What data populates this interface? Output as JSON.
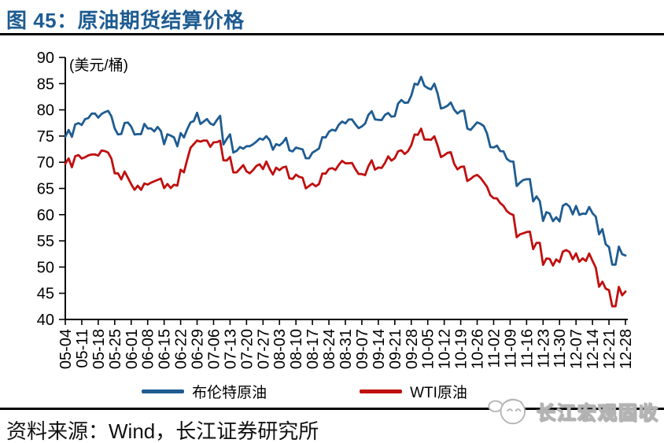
{
  "page": {
    "title": "图 45：原油期货结算价格",
    "source": "资料来源：Wind，长江证券研究所",
    "watermark": "长江宏观固收"
  },
  "colors": {
    "brand_blue": "#1E5C91",
    "line_blue": "#1E5C91",
    "line_red": "#C00F0F",
    "axis_black": "#000000"
  },
  "chart_data": {
    "type": "line",
    "title": "原油期货结算价格",
    "unit_label": "(美元/桶)",
    "xlabel": "",
    "ylabel": "美元/桶",
    "ylim": [
      40,
      90
    ],
    "yticks": [
      40,
      45,
      50,
      55,
      60,
      65,
      70,
      75,
      80,
      85,
      90
    ],
    "grid": false,
    "legend_position": "bottom",
    "x_ticks_every": 5,
    "x_tick_labels": [
      "05-04",
      "05-11",
      "05-18",
      "05-25",
      "06-01",
      "06-08",
      "06-15",
      "06-22",
      "06-29",
      "07-06",
      "07-13",
      "07-20",
      "07-27",
      "08-03",
      "08-10",
      "08-17",
      "08-24",
      "08-31",
      "09-07",
      "09-14",
      "09-21",
      "09-28",
      "10-05",
      "10-12",
      "10-19",
      "10-26",
      "11-02",
      "11-09",
      "11-16",
      "11-23",
      "11-30",
      "12-07",
      "12-14",
      "12-21",
      "12-28"
    ],
    "series": [
      {
        "name": "布伦特原油",
        "color": "#1E5C91",
        "values": [
          74.87,
          76.17,
          74.85,
          77.21,
          77.47,
          77.12,
          78.23,
          78.43,
          79.28,
          79.3,
          78.51,
          79.22,
          79.57,
          79.8,
          78.79,
          76.44,
          75.3,
          75.39,
          77.5,
          77.59,
          76.79,
          75.29,
          75.38,
          75.36,
          77.32,
          76.46,
          76.46,
          75.88,
          76.74,
          75.94,
          73.44,
          75.34,
          75.08,
          74.74,
          73.05,
          75.55,
          74.73,
          76.31,
          77.62,
          77.85,
          79.44,
          77.3,
          77.76,
          78.24,
          77.39,
          77.11,
          78.07,
          78.86,
          73.4,
          74.45,
          75.33,
          71.84,
          72.16,
          72.9,
          72.58,
          73.07,
          73.06,
          73.44,
          73.93,
          74.54,
          74.29,
          74.97,
          74.25,
          72.39,
          73.45,
          73.21,
          73.75,
          74.65,
          72.28,
          72.07,
          72.81,
          72.61,
          72.46,
          70.76,
          70.76,
          71.83,
          72.21,
          72.63,
          74.78,
          74.73,
          75.82,
          76.21,
          76.01,
          77.14,
          77.77,
          77.42,
          78.15,
          78.17,
          77.27,
          76.5,
          76.83,
          77.37,
          79.06,
          79.74,
          78.18,
          78.09,
          78.05,
          79.03,
          79.4,
          78.7,
          78.8,
          81.2,
          81.87,
          81.34,
          81.38,
          82.72,
          84.98,
          84.8,
          86.29,
          84.58,
          84.16,
          83.91,
          85.0,
          83.09,
          80.26,
          80.43,
          80.78,
          81.41,
          80.05,
          79.29,
          79.78,
          79.83,
          76.44,
          76.17,
          76.89,
          77.62,
          77.34,
          76.91,
          75.47,
          72.89,
          72.83,
          73.17,
          72.13,
          72.07,
          70.65,
          70.18,
          70.12,
          65.47,
          66.12,
          66.62,
          66.76,
          66.79,
          62.53,
          63.48,
          62.6,
          58.8,
          60.48,
          60.21,
          58.76,
          59.51,
          58.71,
          61.69,
          62.08,
          61.56,
          60.06,
          61.67,
          59.97,
          60.2,
          60.15,
          61.45,
          60.28,
          59.61,
          56.26,
          57.24,
          54.35,
          53.82,
          50.47,
          50.47,
          53.9,
          52.45,
          52.2
        ]
      },
      {
        "name": "WTI原油",
        "color": "#C00F0F",
        "values": [
          69.72,
          70.73,
          69.06,
          71.14,
          71.36,
          70.7,
          70.96,
          71.31,
          71.49,
          71.49,
          71.28,
          72.24,
          72.13,
          71.84,
          70.71,
          67.88,
          67.88,
          66.73,
          68.21,
          67.04,
          65.81,
          64.75,
          65.52,
          64.73,
          65.95,
          65.74,
          66.1,
          66.36,
          66.64,
          66.89,
          65.06,
          65.85,
          65.07,
          65.71,
          65.54,
          68.58,
          68.08,
          70.53,
          72.76,
          73.45,
          74.15,
          73.94,
          74.14,
          74.14,
          72.94,
          73.8,
          73.85,
          74.11,
          70.38,
          70.33,
          71.01,
          68.06,
          68.08,
          68.76,
          69.46,
          68.26,
          67.89,
          68.52,
          69.3,
          69.61,
          68.69,
          70.13,
          68.76,
          67.66,
          68.96,
          68.49,
          69.01,
          69.17,
          66.94,
          66.81,
          67.63,
          67.2,
          67.04,
          65.01,
          65.46,
          65.91,
          65.42,
          65.84,
          67.86,
          67.83,
          68.72,
          68.87,
          68.53,
          69.51,
          70.25,
          69.8,
          69.8,
          69.87,
          68.72,
          67.77,
          67.75,
          67.54,
          69.25,
          70.37,
          68.59,
          68.99,
          68.91,
          69.85,
          71.12,
          70.32,
          70.78,
          72.08,
          72.28,
          71.57,
          72.12,
          73.25,
          75.3,
          75.23,
          76.41,
          74.33,
          74.34,
          74.29,
          74.96,
          73.17,
          70.97,
          71.34,
          71.78,
          71.92,
          69.75,
          68.65,
          69.12,
          69.17,
          66.43,
          66.82,
          67.33,
          67.59,
          67.04,
          66.18,
          65.31,
          63.69,
          63.14,
          63.1,
          62.21,
          61.67,
          60.67,
          60.19,
          59.93,
          55.69,
          56.25,
          56.46,
          56.68,
          56.76,
          53.43,
          54.63,
          54.63,
          50.42,
          51.63,
          51.56,
          50.29,
          51.45,
          50.93,
          52.95,
          53.25,
          52.89,
          51.49,
          52.61,
          51.0,
          51.65,
          51.15,
          52.58,
          51.2,
          49.88,
          46.24,
          47.2,
          45.88,
          45.59,
          42.53,
          42.53,
          46.22,
          44.61,
          45.33
        ]
      }
    ]
  }
}
